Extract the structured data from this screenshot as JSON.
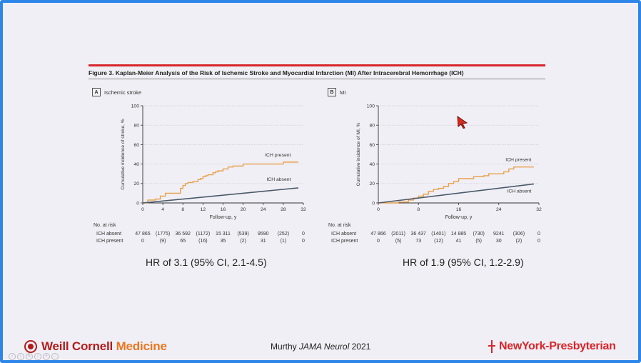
{
  "figure": {
    "title": "Figure 3. Kaplan-Meier Analysis of the Risk of Ischemic Stroke and Myocardial Infarction (MI) After Intracerebral Hemorrhage (ICH)"
  },
  "panels": [
    {
      "letter": "A",
      "label": "Ischemic stroke",
      "hr_text": "HR of 3.1 (95% CI, 2.1-4.5)",
      "risk_table": {
        "title": "No. at risk",
        "rows": [
          {
            "label": "ICH absent",
            "values": [
              "47 865",
              "(1775)",
              "36 592",
              "(1172)",
              "15 311",
              "(539)",
              "9590",
              "(252)",
              "0"
            ]
          },
          {
            "label": "ICH present",
            "values": [
              "0",
              "(9)",
              "65",
              "(16)",
              "35",
              "(2)",
              "31",
              "(1)",
              "0"
            ]
          }
        ]
      }
    },
    {
      "letter": "B",
      "label": "MI",
      "hr_text": "HR of 1.9 (95% CI, 1.2-2.9)",
      "risk_table": {
        "title": "No. at risk",
        "rows": [
          {
            "label": "ICH absent",
            "values": [
              "47 866",
              "(2011)",
              "36 437",
              "(1401)",
              "14 885",
              "(730)",
              "9241",
              "(306)",
              "0"
            ]
          },
          {
            "label": "ICH present",
            "values": [
              "0",
              "(5)",
              "73",
              "(12)",
              "41",
              "(5)",
              "30",
              "(2)",
              "0"
            ]
          }
        ]
      }
    }
  ],
  "chart_data": [
    {
      "type": "line",
      "title": "",
      "xlabel": "Follow-up, y",
      "ylabel": "Cumulative incidence of stroke, %",
      "xlim": [
        0,
        32
      ],
      "ylim": [
        0,
        100
      ],
      "xticks": [
        0,
        4,
        8,
        12,
        16,
        20,
        24,
        28,
        32
      ],
      "yticks": [
        0,
        20,
        40,
        60,
        80,
        100
      ],
      "grid": true,
      "colors": {
        "present": "#e8a04b",
        "absent": "#4a5a6a"
      },
      "series": [
        {
          "name": "ICH present",
          "step": true,
          "x": [
            0,
            1,
            2.5,
            3.5,
            4.5,
            7.5,
            8,
            8.5,
            9,
            10,
            11,
            11.5,
            12,
            12.5,
            13,
            14,
            14.5,
            15,
            16,
            17,
            18,
            20,
            26,
            28,
            31
          ],
          "y": [
            0,
            3,
            4,
            7,
            10,
            15,
            18,
            20,
            21,
            22,
            24,
            25,
            27,
            28,
            29,
            31,
            32,
            33,
            35,
            37,
            38,
            40,
            40,
            42,
            42
          ]
        },
        {
          "name": "ICH absent",
          "step": false,
          "x": [
            0,
            31
          ],
          "y": [
            0,
            15.5
          ]
        }
      ]
    },
    {
      "type": "line",
      "title": "",
      "xlabel": "Follow-up, y",
      "ylabel": "Cumulative incidence of MI, %",
      "xlim": [
        0,
        32
      ],
      "ylim": [
        0,
        100
      ],
      "xticks": [
        0,
        8,
        16,
        24,
        32
      ],
      "yticks": [
        0,
        20,
        40,
        60,
        80,
        100
      ],
      "grid": true,
      "colors": {
        "present": "#e8a04b",
        "absent": "#4a5a6a"
      },
      "series": [
        {
          "name": "ICH present",
          "step": true,
          "x": [
            0,
            4,
            6,
            7,
            8,
            9,
            10,
            11,
            12,
            13,
            14,
            15,
            16,
            19,
            21,
            22,
            25,
            26,
            27,
            31
          ],
          "y": [
            0,
            1,
            3,
            5,
            7,
            9,
            12,
            14,
            15,
            17,
            20,
            22,
            25,
            27,
            28,
            30,
            32,
            35,
            37,
            37
          ]
        },
        {
          "name": "ICH absent",
          "step": false,
          "x": [
            0,
            31
          ],
          "y": [
            0,
            19.5
          ]
        }
      ]
    }
  ],
  "footer": {
    "wcm_part1": "Weill Cornell",
    "wcm_part2": "Medicine",
    "citation_author": "Murthy ",
    "citation_journal": "JAMA Neurol",
    "citation_year": " 2021",
    "nyp": "NewYork-Presbyterian"
  }
}
